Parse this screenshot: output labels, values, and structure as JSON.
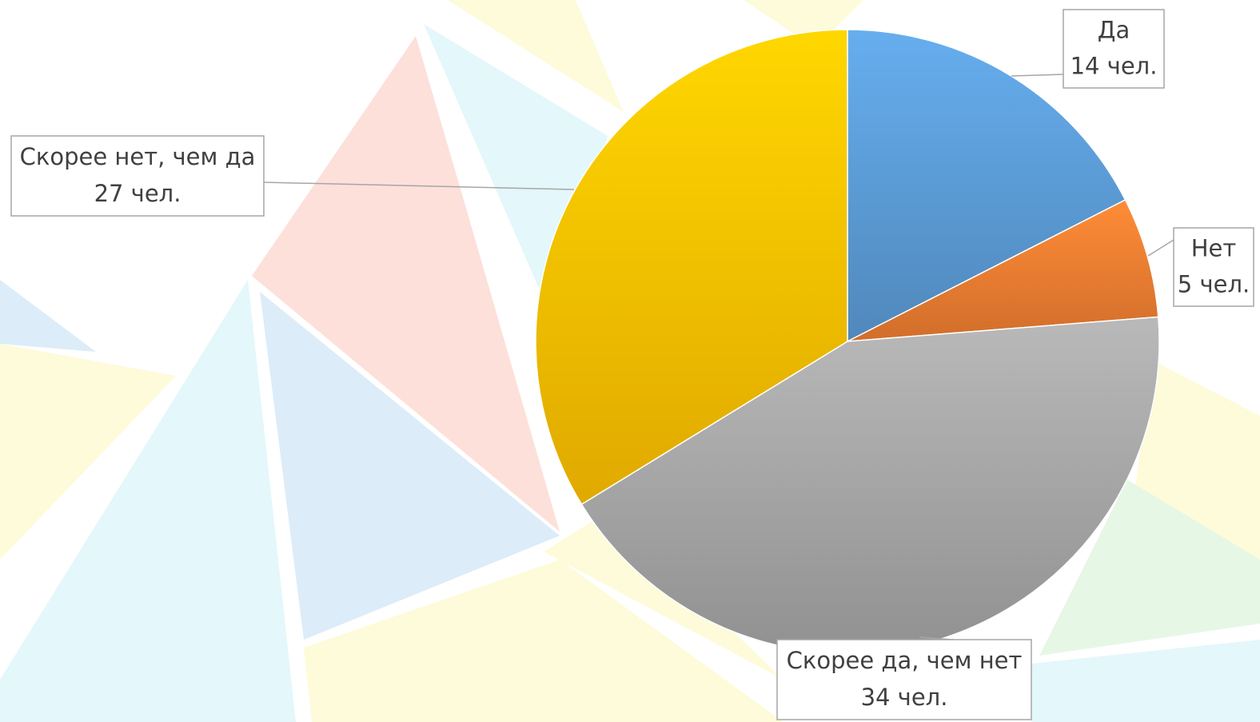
{
  "chart_data": {
    "type": "pie",
    "categories": [
      "Да",
      "Нет",
      "Скорее да, чем нет",
      "Скорее нет, чем да"
    ],
    "values": [
      14,
      5,
      34,
      27
    ],
    "value_labels": [
      "14 чел.",
      "5 чел.",
      "34 чел.",
      "27 чел."
    ],
    "colors": [
      "#5b9bd5",
      "#ed7d31",
      "#a5a5a5",
      "#ffc000"
    ]
  }
}
